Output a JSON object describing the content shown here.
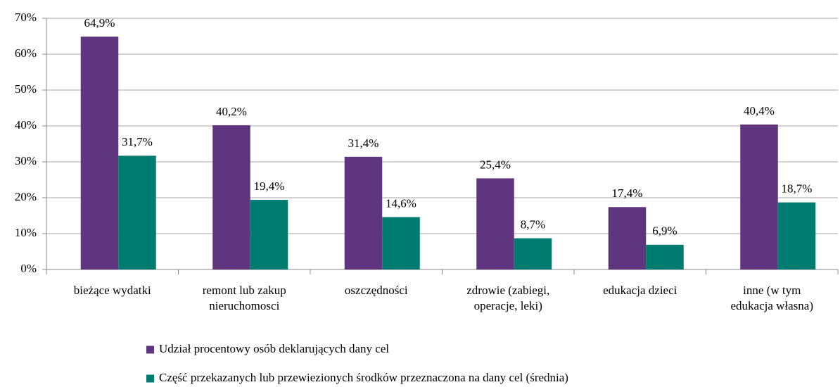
{
  "chart_data": {
    "type": "bar",
    "categories": [
      "bieżące wydatki",
      "remont lub zakup\nnieruchomosci",
      "oszczędności",
      "zdrowie (zabiegi,\noperacje, leki)",
      "edukacja dzieci",
      "inne (w tym\nedukacja własna)"
    ],
    "series": [
      {
        "name": "Udział procentowy osób deklarujących dany cel",
        "color": "#60357f",
        "values": [
          64.9,
          40.2,
          31.4,
          25.4,
          17.4,
          40.4
        ],
        "value_labels": [
          "64,9%",
          "40,2%",
          "31,4%",
          "25,4%",
          "17,4%",
          "40,4%"
        ]
      },
      {
        "name": "Część przekazanych lub przewiezionych środków przeznaczona na dany cel (średnia)",
        "color": "#007b6f",
        "values": [
          31.7,
          19.4,
          14.6,
          8.7,
          6.9,
          18.7
        ],
        "value_labels": [
          "31,7%",
          "19,4%",
          "14,6%",
          "8,7%",
          "6,9%",
          "18,7%"
        ]
      }
    ],
    "ylim": [
      0,
      70
    ],
    "yticks": [
      {
        "value": 0,
        "label": "0%"
      },
      {
        "value": 10,
        "label": "10%"
      },
      {
        "value": 20,
        "label": "20%"
      },
      {
        "value": 30,
        "label": "30%"
      },
      {
        "value": 40,
        "label": "40%"
      },
      {
        "value": 50,
        "label": "50%"
      },
      {
        "value": 60,
        "label": "60%"
      },
      {
        "value": 70,
        "label": "70%"
      }
    ],
    "grid": true,
    "legend": "bottom"
  }
}
